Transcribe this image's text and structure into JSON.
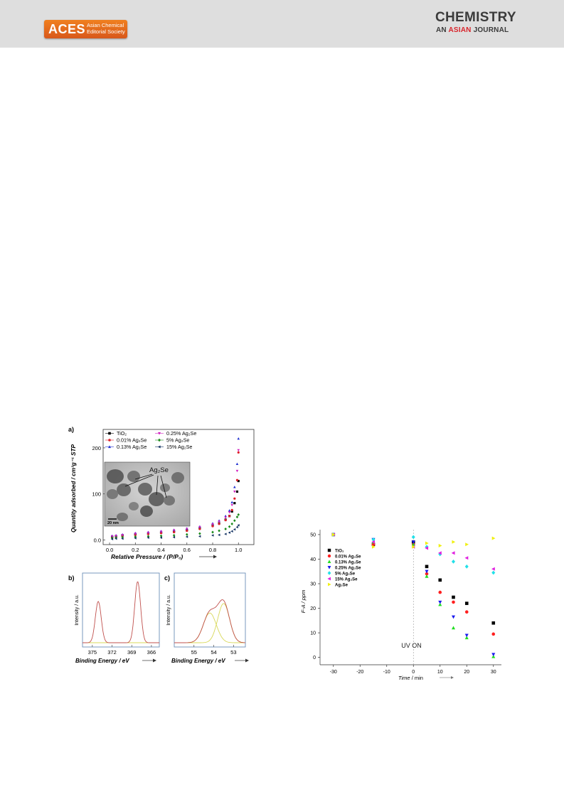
{
  "header": {
    "aces_logo_text": "ACES",
    "aces_subtitle_line1": "Asian Chemical",
    "aces_subtitle_line2": "Editorial Society",
    "journal_name_top": "CHEMISTRY",
    "journal_name_an": "AN",
    "journal_name_asian": "ASIAN",
    "journal_name_journal": "JOURNAL"
  },
  "colors": {
    "header_bg": "#dedede",
    "aces_orange": "#e8721e",
    "journal_red": "#d8242b",
    "panel_frame": "#6b8fb8",
    "xps_fit_red": "#c0504d",
    "xps_fit_yellow": "#d8d85a"
  },
  "figure_left": {
    "panel_a": {
      "label": "a)",
      "ylabel": "Quantity adsorbed / cm³g⁻¹ STP",
      "xlabel": "Relative Pressure / (P/P₀)",
      "xticks": [
        "0.0",
        "0.2",
        "0.4",
        "0.6",
        "0.8",
        "1.0"
      ],
      "yticks": [
        "0.0",
        "100",
        "200"
      ],
      "legend": [
        {
          "label": "TiO₂",
          "color": "#000000",
          "marker": "square"
        },
        {
          "label": "0.01% Ag₂Se",
          "color": "#e0202a",
          "marker": "circle"
        },
        {
          "label": "0.13% Ag₂Se",
          "color": "#2030d0",
          "marker": "triangle-up"
        },
        {
          "label": "0.25% Ag₂Se",
          "color": "#d020c0",
          "marker": "triangle-down"
        },
        {
          "label": "5%    Ag₂Se",
          "color": "#1a8a1a",
          "marker": "diamond"
        },
        {
          "label": "15%   Ag₂Se",
          "color": "#103060",
          "marker": "triangle-left"
        }
      ],
      "inset": {
        "label": "Ag₂Se",
        "scale_bar": "20 nm"
      }
    },
    "panel_b": {
      "label": "b)",
      "ylabel": "Intensity / a.u.",
      "xlabel": "Binding Energy / eV",
      "xticks": [
        "375",
        "372",
        "369",
        "366"
      ]
    },
    "panel_c": {
      "label": "c)",
      "ylabel": "Intensity / a.u.",
      "xlabel": "Binding Energy / eV",
      "xticks": [
        "55",
        "54",
        "53"
      ]
    }
  },
  "chart_data": [
    {
      "type": "scatter",
      "xlabel": "Relative Pressure / (P/P₀)",
      "ylabel": "Quantity adsorbed / cm³g⁻¹ STP",
      "xlim": [
        -0.05,
        1.12
      ],
      "ylim": [
        -10,
        240
      ],
      "series": [
        {
          "name": "TiO₂",
          "color": "#000000",
          "marker": "square",
          "x": [
            0.02,
            0.05,
            0.1,
            0.2,
            0.3,
            0.4,
            0.5,
            0.6,
            0.7,
            0.8,
            0.85,
            0.9,
            0.93,
            0.95,
            0.97,
            0.99,
            1.0
          ],
          "y": [
            7,
            8,
            10,
            12,
            14,
            16,
            18,
            21,
            25,
            31,
            36,
            44,
            52,
            62,
            80,
            105,
            128
          ]
        },
        {
          "name": "0.01% Ag₂Se",
          "color": "#e0202a",
          "marker": "circle",
          "x": [
            0.02,
            0.05,
            0.1,
            0.2,
            0.3,
            0.4,
            0.5,
            0.6,
            0.7,
            0.8,
            0.85,
            0.9,
            0.93,
            0.95,
            0.97,
            0.99,
            1.0
          ],
          "y": [
            6,
            7,
            9,
            11,
            13,
            15,
            17,
            20,
            24,
            30,
            35,
            43,
            52,
            65,
            90,
            130,
            190
          ]
        },
        {
          "name": "0.13% Ag₂Se",
          "color": "#2030d0",
          "marker": "triangle-up",
          "x": [
            0.02,
            0.05,
            0.1,
            0.2,
            0.3,
            0.4,
            0.5,
            0.6,
            0.7,
            0.8,
            0.85,
            0.9,
            0.93,
            0.95,
            0.97,
            0.99,
            1.0
          ],
          "y": [
            9,
            10,
            12,
            15,
            17,
            19,
            22,
            25,
            29,
            36,
            42,
            52,
            64,
            82,
            115,
            165,
            220
          ]
        },
        {
          "name": "0.25% Ag₂Se",
          "color": "#d020c0",
          "marker": "triangle-down",
          "x": [
            0.02,
            0.05,
            0.1,
            0.2,
            0.3,
            0.4,
            0.5,
            0.6,
            0.7,
            0.8,
            0.85,
            0.9,
            0.93,
            0.95,
            0.97,
            0.99,
            1.0
          ],
          "y": [
            8,
            9,
            11,
            14,
            16,
            18,
            21,
            24,
            28,
            34,
            40,
            49,
            60,
            76,
            105,
            150,
            195
          ]
        },
        {
          "name": "5%    Ag₂Se",
          "color": "#1a8a1a",
          "marker": "diamond",
          "x": [
            0.02,
            0.05,
            0.1,
            0.2,
            0.3,
            0.4,
            0.5,
            0.6,
            0.7,
            0.8,
            0.85,
            0.9,
            0.93,
            0.95,
            0.97,
            0.99,
            1.0
          ],
          "y": [
            4,
            5,
            6,
            7,
            8,
            9,
            10,
            12,
            14,
            17,
            20,
            24,
            29,
            35,
            42,
            50,
            55
          ]
        },
        {
          "name": "15%   Ag₂Se",
          "color": "#103060",
          "marker": "triangle-left",
          "x": [
            0.02,
            0.05,
            0.1,
            0.2,
            0.3,
            0.4,
            0.5,
            0.6,
            0.7,
            0.8,
            0.85,
            0.9,
            0.93,
            0.95,
            0.97,
            0.99,
            1.0
          ],
          "y": [
            2,
            3,
            3,
            4,
            5,
            5,
            6,
            7,
            8,
            10,
            11,
            13,
            16,
            19,
            23,
            28,
            32
          ]
        }
      ]
    },
    {
      "type": "line",
      "xlabel": "Binding Energy / eV",
      "ylabel": "Intensity / a.u.",
      "x_reversed": true,
      "xlim": [
        376.5,
        364.8
      ],
      "series": [
        {
          "name": "",
          "color": "#c0504d",
          "peaks": [
            {
              "center": 374.1,
              "height": 1.0,
              "width": 0.45
            },
            {
              "center": 368.1,
              "height": 1.48,
              "width": 0.45
            }
          ]
        },
        {
          "name": "",
          "color": "#d8d85a",
          "baseline": true
        }
      ]
    },
    {
      "type": "line",
      "xlabel": "Binding Energy / eV",
      "ylabel": "Intensity / a.u.",
      "x_reversed": true,
      "xlim": [
        56.0,
        52.4
      ],
      "series": [
        {
          "name": "",
          "color": "#c0504d",
          "peaks": [
            {
              "center": 54.2,
              "height": 0.72,
              "width": 0.33
            },
            {
              "center": 53.5,
              "height": 0.95,
              "width": 0.3
            }
          ]
        },
        {
          "name": "",
          "color": "#d8d85a",
          "peaks": [
            {
              "center": 54.2,
              "height": 0.72,
              "width": 0.33
            },
            {
              "center": 53.5,
              "height": 0.95,
              "width": 0.3
            }
          ],
          "components": true
        }
      ]
    },
    {
      "type": "scatter",
      "xlabel": "Time / min",
      "ylabel": "F-A / ppm",
      "xlim": [
        -35,
        33
      ],
      "ylim": [
        -3,
        52
      ],
      "annotation": "UV ON",
      "xticks": [
        "-30",
        "-20",
        "-10",
        "0",
        "10",
        "20",
        "30"
      ],
      "yticks": [
        "0",
        "10",
        "20",
        "30",
        "40",
        "50"
      ],
      "series": [
        {
          "name": "TiO₂",
          "color": "#000000",
          "marker": "square",
          "x": [
            -30,
            -15,
            0,
            5,
            10,
            15,
            20,
            30
          ],
          "y": [
            50,
            46,
            47,
            37,
            31.5,
            24.5,
            22,
            14
          ]
        },
        {
          "name": "0.01% Ag₂Se",
          "color": "#ff1f1f",
          "marker": "circle",
          "x": [
            -30,
            -15,
            0,
            5,
            10,
            15,
            20,
            30
          ],
          "y": [
            50,
            46,
            46,
            34,
            26.5,
            22.5,
            18.5,
            9.5
          ]
        },
        {
          "name": "0.13% Ag₂Se",
          "color": "#22dd22",
          "marker": "triangle-up",
          "x": [
            -30,
            -15,
            0,
            5,
            10,
            15,
            20,
            30
          ],
          "y": [
            50,
            47,
            46,
            33,
            21.5,
            12,
            8,
            0.3
          ]
        },
        {
          "name": "0.25% Ag₂Se",
          "color": "#1a1aee",
          "marker": "triangle-down",
          "x": [
            -30,
            -15,
            0,
            5,
            10,
            15,
            20,
            30
          ],
          "y": [
            50,
            48,
            47,
            35,
            22.5,
            16.5,
            9,
            1.2
          ]
        },
        {
          "name": "5%     Ag₂Se",
          "color": "#22e0e8",
          "marker": "diamond",
          "x": [
            -30,
            -15,
            0,
            5,
            10,
            15,
            20,
            30
          ],
          "y": [
            50,
            48,
            49,
            45,
            42,
            39,
            37,
            34.5
          ]
        },
        {
          "name": "15%    Ag₂Se",
          "color": "#e020e0",
          "marker": "triangle-left",
          "x": [
            -30,
            -15,
            0,
            5,
            10,
            15,
            20,
            30
          ],
          "y": [
            50,
            47,
            45,
            44.5,
            42.5,
            42.5,
            40.5,
            36
          ]
        },
        {
          "name": "Ag₂Se",
          "color": "#f0f010",
          "marker": "triangle-right",
          "x": [
            -30,
            -15,
            0,
            5,
            10,
            15,
            20,
            30
          ],
          "y": [
            50,
            45,
            45,
            46.5,
            45.5,
            47,
            46,
            48.5
          ]
        }
      ]
    }
  ],
  "figure_right": {
    "ylabel": "F-A / ppm",
    "xlabel_main": "Time",
    "xlabel_unit": " / min",
    "annotation": "UV ON"
  }
}
